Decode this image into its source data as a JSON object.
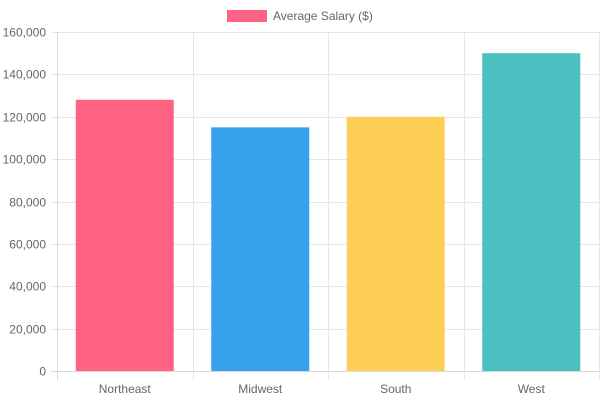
{
  "chart_data": {
    "type": "bar",
    "categories": [
      "Northeast",
      "Midwest",
      "South",
      "West"
    ],
    "series": [
      {
        "name": "Average Salary ($)",
        "values": [
          128000,
          115000,
          120000,
          150000
        ]
      }
    ],
    "bar_colors": [
      "#ff6384",
      "#36a2eb",
      "#ffce56",
      "#4bc0c0"
    ],
    "y_ticks": [
      "0",
      "20,000",
      "40,000",
      "60,000",
      "80,000",
      "100,000",
      "120,000",
      "140,000",
      "160,000"
    ],
    "ylim": [
      0,
      160000
    ],
    "grid": true,
    "legend_position": "top",
    "legend_swatch_color": "#ff6384"
  }
}
